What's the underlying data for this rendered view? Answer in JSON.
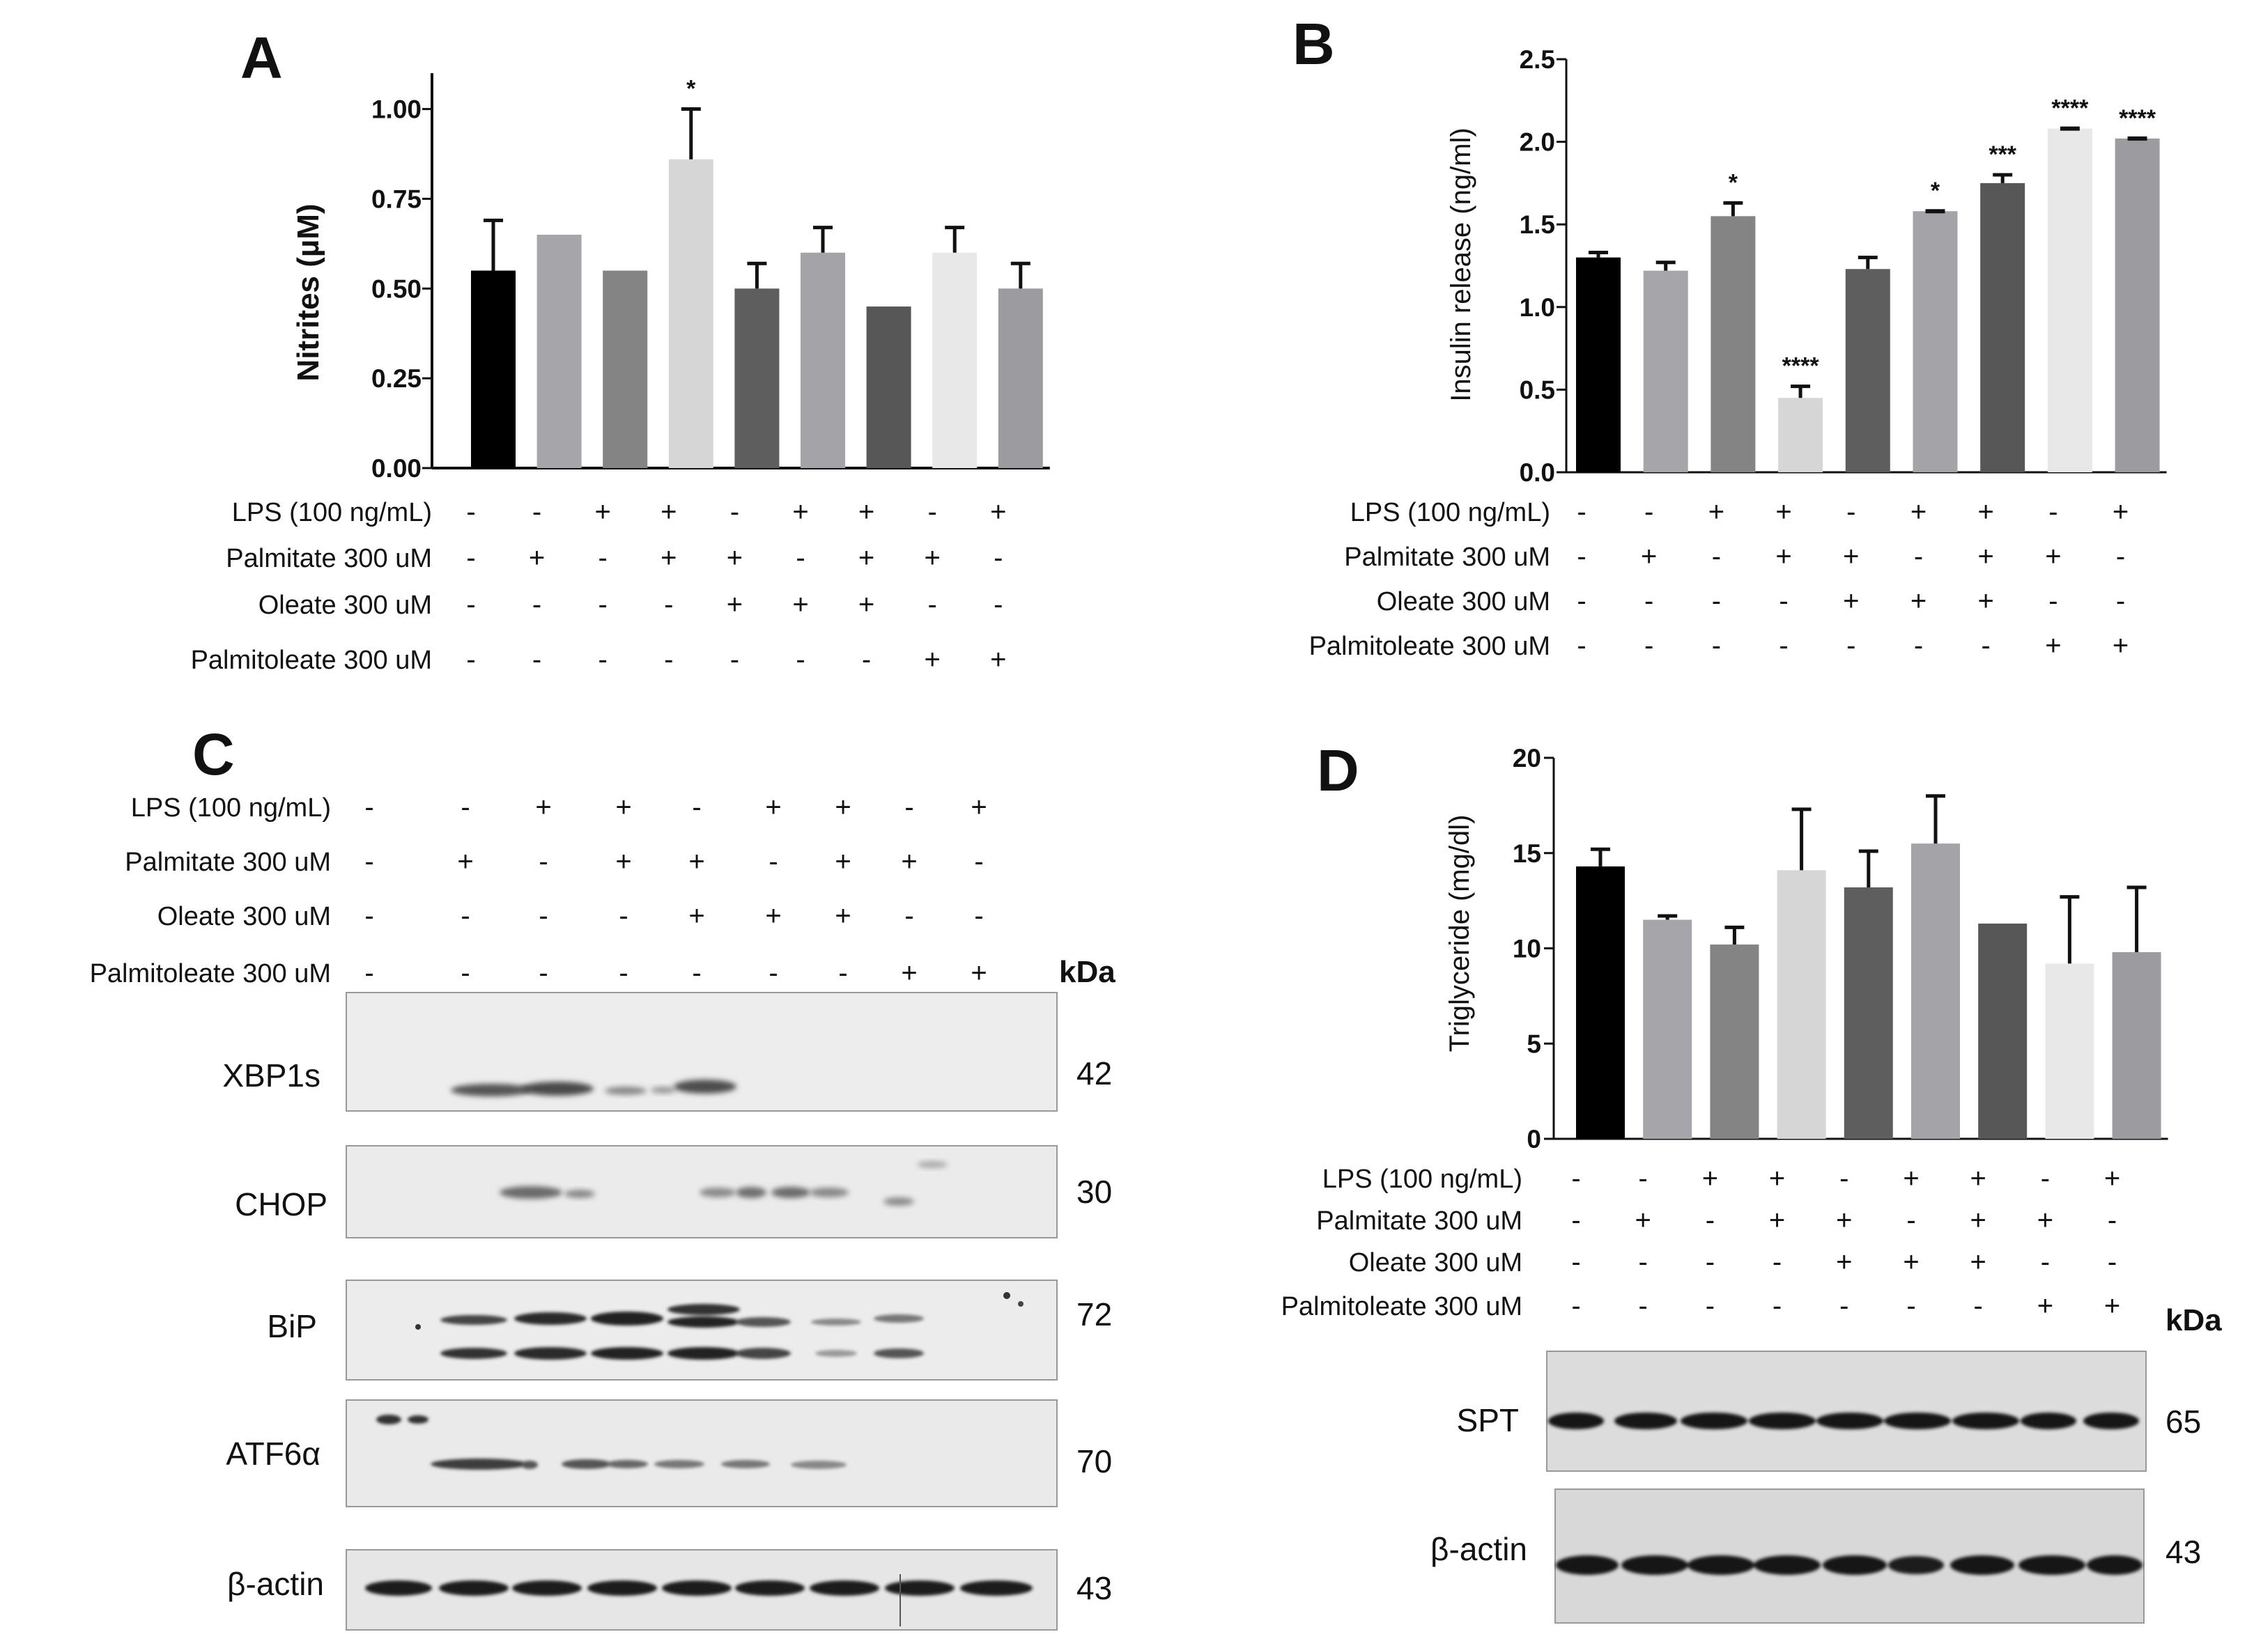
{
  "panels": {
    "A": "A",
    "B": "B",
    "C": "C",
    "D": "D"
  },
  "treatment_labels": {
    "lps": "LPS  (100 ng/mL)",
    "palmitate": "Palmitate 300 uM",
    "oleate": "Oleate 300 uM",
    "palmitoleate": "Palmitoleate 300 uM"
  },
  "treatment_matrix": {
    "lps": [
      "-",
      "-",
      "+",
      "+",
      "-",
      "+",
      "+",
      "-",
      "+"
    ],
    "palmitate": [
      "-",
      "+",
      "-",
      "+",
      "+",
      "-",
      "+",
      "+",
      "-"
    ],
    "oleate": [
      "-",
      "-",
      "-",
      "-",
      "+",
      "+",
      "+",
      "-",
      "-"
    ],
    "palmitoleate": [
      "-",
      "-",
      "-",
      "-",
      "-",
      "-",
      "-",
      "+",
      "+"
    ]
  },
  "colors": {
    "c1": "#000000",
    "c2": "#a6a6aa",
    "c3": "#848484",
    "c4": "#d6d6d6",
    "c5": "#5e5e5e",
    "c6": "#a4a4a8",
    "c7": "#575757",
    "c8": "#e8e8e8",
    "c9": "#9c9ca0"
  },
  "chart_data": [
    {
      "id": "A",
      "type": "bar",
      "title": "",
      "ylabel": "Nitrites (µM)",
      "ylim": [
        0,
        1.1
      ],
      "yticks": [
        0,
        0.25,
        0.5,
        0.75,
        1.0
      ],
      "ytick_labels": [
        "0.00",
        "0.25",
        "0.50",
        "0.75",
        "1.00"
      ],
      "values": [
        0.55,
        0.65,
        0.55,
        0.86,
        0.5,
        0.6,
        0.45,
        0.6,
        0.5
      ],
      "errors": [
        0.14,
        0,
        0,
        0.14,
        0.07,
        0.07,
        0,
        0.07,
        0.07
      ],
      "significance": [
        "",
        "",
        "",
        "*",
        "",
        "",
        "",
        "",
        ""
      ]
    },
    {
      "id": "B",
      "type": "bar",
      "title": "",
      "ylabel": "Insulin release (ng/ml)",
      "ylim": [
        0,
        2.5
      ],
      "yticks": [
        0,
        0.5,
        1.0,
        1.5,
        2.0,
        2.5
      ],
      "ytick_labels": [
        "0.0",
        "0.5",
        "1.0",
        "1.5",
        "2.0",
        "2.5"
      ],
      "values": [
        1.3,
        1.22,
        1.55,
        0.45,
        1.23,
        1.58,
        1.75,
        2.08,
        2.02
      ],
      "errors": [
        0.03,
        0.05,
        0.08,
        0.07,
        0.07,
        0.0,
        0.05,
        0.0,
        0.0
      ],
      "significance": [
        "",
        "",
        "*",
        "****",
        "",
        "*",
        "***",
        "****",
        "****"
      ]
    },
    {
      "id": "D",
      "type": "bar",
      "title": "",
      "ylabel": "Triglyceride (mg/dl)",
      "ylim": [
        0,
        20
      ],
      "yticks": [
        0,
        5,
        10,
        15,
        20
      ],
      "ytick_labels": [
        "0",
        "5",
        "10",
        "15",
        "20"
      ],
      "values": [
        14.3,
        11.5,
        10.2,
        14.1,
        13.2,
        15.5,
        11.3,
        9.2,
        9.8
      ],
      "errors": [
        0.9,
        0.2,
        0.9,
        3.2,
        1.9,
        2.5,
        0,
        3.5,
        3.4
      ],
      "significance": [
        "",
        "",
        "",
        "",
        "",
        "",
        "",
        "",
        ""
      ]
    }
  ],
  "western_C": {
    "kda_header": "kDa",
    "blots": [
      {
        "label": "XBP1s",
        "kda": "42"
      },
      {
        "label": "CHOP",
        "kda": "30"
      },
      {
        "label": "BiP",
        "kda": "72"
      },
      {
        "label": "ATF6α",
        "kda": "70"
      },
      {
        "label": "β-actin",
        "kda": "43"
      }
    ]
  },
  "western_D": {
    "kda_header": "kDa",
    "blots": [
      {
        "label": "SPT",
        "kda": "65"
      },
      {
        "label": "β-actin",
        "kda": "43"
      }
    ]
  }
}
